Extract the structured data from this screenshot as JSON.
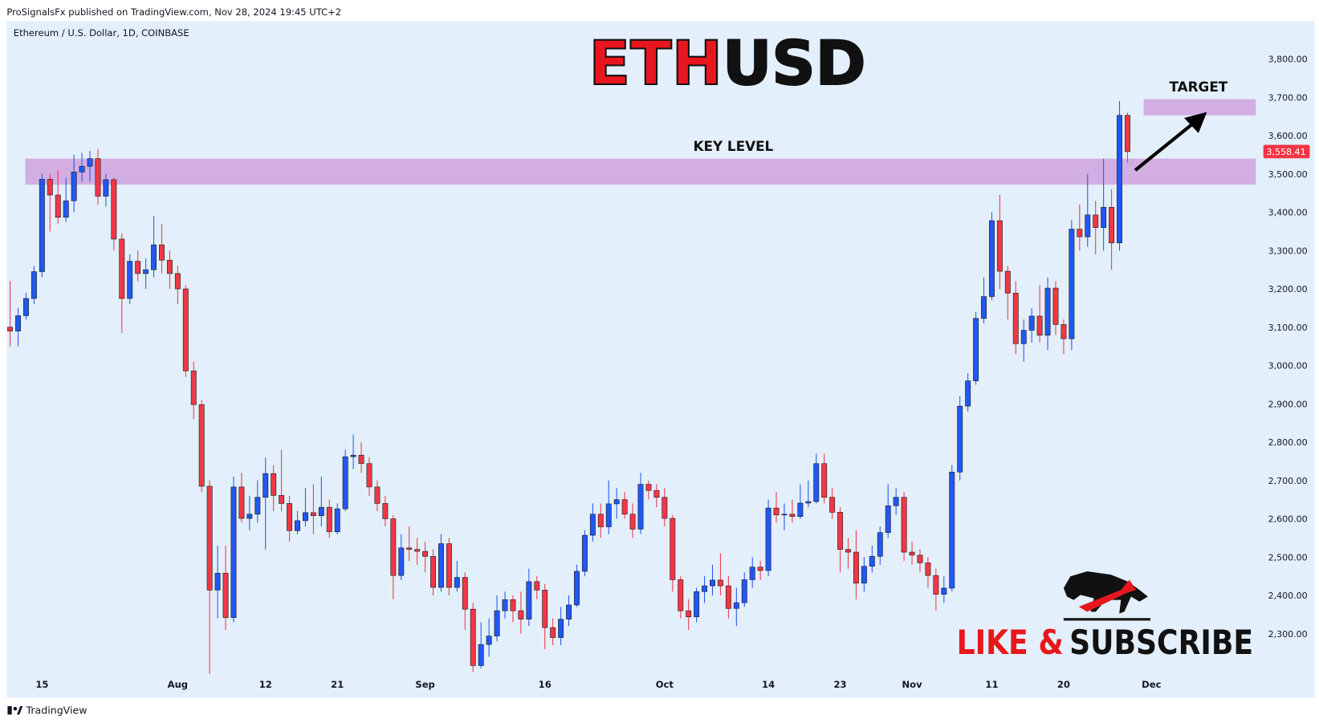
{
  "header": "ProSignalsFx published on TradingView.com, Nov 28, 2024 19:45 UTC+2",
  "footer": "TradingView",
  "chart_data": {
    "type": "candlestick",
    "symbol": "Ethereum / U.S. Dollar, 1D, COINBASE",
    "title_parts": [
      "ETH",
      "USD"
    ],
    "up_color": "#2157f3",
    "down_color": "#f23645",
    "grid": false,
    "ylim": [
      2133,
      3899
    ],
    "yticks": [
      {
        "value": 2300,
        "label": "2,300.00"
      },
      {
        "value": 2400,
        "label": "2,400.00"
      },
      {
        "value": 2500,
        "label": "2,500.00"
      },
      {
        "value": 2600,
        "label": "2,600.00"
      },
      {
        "value": 2700,
        "label": "2,700.00"
      },
      {
        "value": 2800,
        "label": "2,800.00"
      },
      {
        "value": 2900,
        "label": "2,900.00"
      },
      {
        "value": 3000,
        "label": "3,000.00"
      },
      {
        "value": 3100,
        "label": "3,100.00"
      },
      {
        "value": 3200,
        "label": "3,200.00"
      },
      {
        "value": 3300,
        "label": "3,300.00"
      },
      {
        "value": 3400,
        "label": "3,400.00"
      },
      {
        "value": 3500,
        "label": "3,500.00"
      },
      {
        "value": 3600,
        "label": "3,600.00"
      },
      {
        "value": 3700,
        "label": "3,700.00"
      },
      {
        "value": 3800,
        "label": "3,800.00"
      }
    ],
    "categories": [
      null,
      null,
      null,
      null,
      "15",
      null,
      null,
      null,
      null,
      null,
      null,
      null,
      null,
      null,
      null,
      null,
      null,
      null,
      null,
      null,
      null,
      "Aug",
      null,
      null,
      null,
      null,
      null,
      null,
      null,
      null,
      null,
      null,
      "12",
      null,
      null,
      null,
      null,
      null,
      null,
      null,
      null,
      "21",
      null,
      null,
      null,
      null,
      null,
      null,
      null,
      null,
      null,
      null,
      "Sep",
      null,
      null,
      null,
      null,
      null,
      null,
      null,
      null,
      null,
      null,
      null,
      null,
      null,
      null,
      "16",
      null,
      null,
      null,
      null,
      null,
      null,
      null,
      null,
      null,
      null,
      null,
      null,
      null,
      null,
      "Oct",
      null,
      null,
      null,
      null,
      null,
      null,
      null,
      null,
      null,
      null,
      null,
      null,
      "14",
      null,
      null,
      null,
      null,
      null,
      null,
      null,
      null,
      "23",
      null,
      null,
      null,
      null,
      null,
      null,
      null,
      null,
      "Nov",
      null,
      null,
      null,
      null,
      null,
      null,
      null,
      null,
      null,
      "11",
      null,
      null,
      null,
      null,
      null,
      null,
      null,
      null,
      "20",
      null,
      null,
      null,
      null,
      null,
      null,
      null,
      null,
      null,
      null,
      "Dec"
    ],
    "open": [
      3100,
      3090,
      3130,
      3175,
      3245,
      3486,
      3445,
      3387,
      3430,
      3505,
      3520,
      3540,
      3442,
      3485,
      3330,
      3175,
      3272,
      3240,
      3250,
      3315,
      3275,
      3240,
      3200,
      2986,
      2898,
      2685,
      2414,
      2458,
      2342,
      2683,
      2601,
      2612,
      2656,
      2718,
      2661,
      2640,
      2569,
      2595,
      2616,
      2608,
      2630,
      2566,
      2626,
      2762,
      2766,
      2744,
      2683,
      2640,
      2600,
      2452,
      2524,
      2520,
      2515,
      2502,
      2421,
      2535,
      2421,
      2447,
      2364,
      2217,
      2272,
      2294,
      2360,
      2389,
      2360,
      2338,
      2436,
      2414,
      2316,
      2290,
      2338,
      2375,
      2463,
      2557,
      2612,
      2579,
      2639,
      2650,
      2612,
      2573,
      2690,
      2674,
      2656,
      2601,
      2441,
      2360,
      2344,
      2410,
      2425,
      2440,
      2425,
      2366,
      2381,
      2441,
      2474,
      2465,
      2628,
      2610,
      2612,
      2606,
      2641,
      2645,
      2744,
      2656,
      2617,
      2520,
      2513,
      2432,
      2476,
      2502,
      2564,
      2634,
      2656,
      2513,
      2505,
      2485,
      2452,
      2403,
      2419,
      2722,
      2894,
      2960,
      3123,
      3180,
      3378,
      3246,
      3189,
      3057,
      3092,
      3129,
      3079,
      3202,
      3107,
      3070,
      3356,
      3336,
      3393,
      3360,
      3413,
      3320,
      3653,
      null,
      null,
      null
    ],
    "high": [
      3220,
      3150,
      3190,
      3260,
      3500,
      3500,
      3510,
      3490,
      3550,
      3555,
      3560,
      3565,
      3500,
      3490,
      3345,
      3290,
      3300,
      3280,
      3390,
      3370,
      3300,
      3260,
      3210,
      3010,
      2910,
      2700,
      2530,
      2530,
      2710,
      2720,
      2660,
      2700,
      2760,
      2740,
      2780,
      2660,
      2620,
      2680,
      2690,
      2710,
      2650,
      2640,
      2780,
      2820,
      2800,
      2760,
      2700,
      2660,
      2610,
      2560,
      2580,
      2550,
      2540,
      2520,
      2560,
      2550,
      2490,
      2460,
      2380,
      2330,
      2340,
      2400,
      2410,
      2400,
      2410,
      2470,
      2450,
      2430,
      2340,
      2370,
      2400,
      2480,
      2570,
      2640,
      2640,
      2700,
      2680,
      2670,
      2640,
      2720,
      2700,
      2690,
      2680,
      2610,
      2450,
      2390,
      2420,
      2450,
      2480,
      2510,
      2450,
      2420,
      2460,
      2500,
      2490,
      2650,
      2670,
      2640,
      2650,
      2690,
      2700,
      2770,
      2770,
      2680,
      2630,
      2550,
      2570,
      2500,
      2530,
      2580,
      2690,
      2680,
      2670,
      2540,
      2520,
      2500,
      2470,
      2450,
      2740,
      2920,
      2980,
      3140,
      3230,
      3400,
      3445,
      3260,
      3220,
      3120,
      3150,
      3210,
      3230,
      3220,
      3120,
      3380,
      3420,
      3500,
      3430,
      3540,
      3460,
      3690,
      3660,
      null,
      null,
      null
    ],
    "low": [
      3050,
      3050,
      3120,
      3160,
      3230,
      3350,
      3370,
      3375,
      3400,
      3480,
      3480,
      3420,
      3415,
      3300,
      3085,
      3160,
      3220,
      3200,
      3230,
      3240,
      3200,
      3160,
      2970,
      2860,
      2670,
      2195,
      2340,
      2310,
      2330,
      2590,
      2570,
      2590,
      2520,
      2620,
      2620,
      2540,
      2560,
      2580,
      2560,
      2580,
      2550,
      2560,
      2620,
      2730,
      2720,
      2660,
      2620,
      2580,
      2390,
      2440,
      2490,
      2480,
      2460,
      2400,
      2410,
      2400,
      2410,
      2310,
      2200,
      2210,
      2240,
      2280,
      2340,
      2330,
      2300,
      2320,
      2390,
      2260,
      2270,
      2270,
      2320,
      2370,
      2450,
      2540,
      2550,
      2560,
      2600,
      2600,
      2550,
      2560,
      2650,
      2630,
      2580,
      2410,
      2340,
      2310,
      2330,
      2380,
      2400,
      2400,
      2340,
      2320,
      2370,
      2420,
      2440,
      2450,
      2590,
      2570,
      2590,
      2600,
      2630,
      2640,
      2640,
      2600,
      2460,
      2470,
      2390,
      2410,
      2460,
      2480,
      2550,
      2610,
      2490,
      2480,
      2460,
      2420,
      2360,
      2380,
      2410,
      2700,
      2880,
      2950,
      3110,
      3170,
      3200,
      3120,
      3030,
      3010,
      3060,
      3060,
      3040,
      3080,
      3030,
      3040,
      3300,
      3310,
      3290,
      3300,
      3250,
      3300,
      3530,
      null,
      null,
      null
    ],
    "close": [
      3090,
      3130,
      3175,
      3245,
      3486,
      3445,
      3387,
      3430,
      3505,
      3520,
      3540,
      3442,
      3485,
      3330,
      3175,
      3272,
      3240,
      3250,
      3315,
      3275,
      3240,
      3200,
      2986,
      2898,
      2685,
      2414,
      2458,
      2342,
      2683,
      2601,
      2612,
      2656,
      2718,
      2661,
      2640,
      2569,
      2595,
      2616,
      2608,
      2630,
      2566,
      2626,
      2762,
      2766,
      2744,
      2683,
      2640,
      2600,
      2452,
      2524,
      2520,
      2515,
      2502,
      2421,
      2535,
      2421,
      2447,
      2364,
      2217,
      2272,
      2294,
      2360,
      2389,
      2360,
      2338,
      2436,
      2414,
      2316,
      2290,
      2338,
      2375,
      2463,
      2557,
      2612,
      2579,
      2639,
      2650,
      2612,
      2573,
      2690,
      2674,
      2656,
      2601,
      2441,
      2360,
      2344,
      2410,
      2425,
      2440,
      2425,
      2366,
      2381,
      2441,
      2474,
      2465,
      2628,
      2610,
      2612,
      2606,
      2641,
      2645,
      2744,
      2656,
      2617,
      2520,
      2513,
      2432,
      2476,
      2502,
      2564,
      2634,
      2656,
      2513,
      2505,
      2485,
      2452,
      2403,
      2419,
      2722,
      2894,
      2960,
      3123,
      3180,
      3378,
      3246,
      3189,
      3057,
      3092,
      3129,
      3079,
      3202,
      3107,
      3070,
      3356,
      3336,
      3393,
      3360,
      3413,
      3320,
      3653,
      3558.41,
      null,
      null,
      null
    ],
    "last_price_label": "3,558.41",
    "zones": [
      {
        "label": "KEY LEVEL",
        "low": 3472,
        "high": 3540,
        "color": "#cfa6e0"
      },
      {
        "label": "TARGET",
        "low": 3653,
        "high": 3695,
        "color": "#cfa6e0"
      }
    ],
    "cta_parts": [
      "LIKE &",
      "SUBSCRIBE"
    ]
  }
}
